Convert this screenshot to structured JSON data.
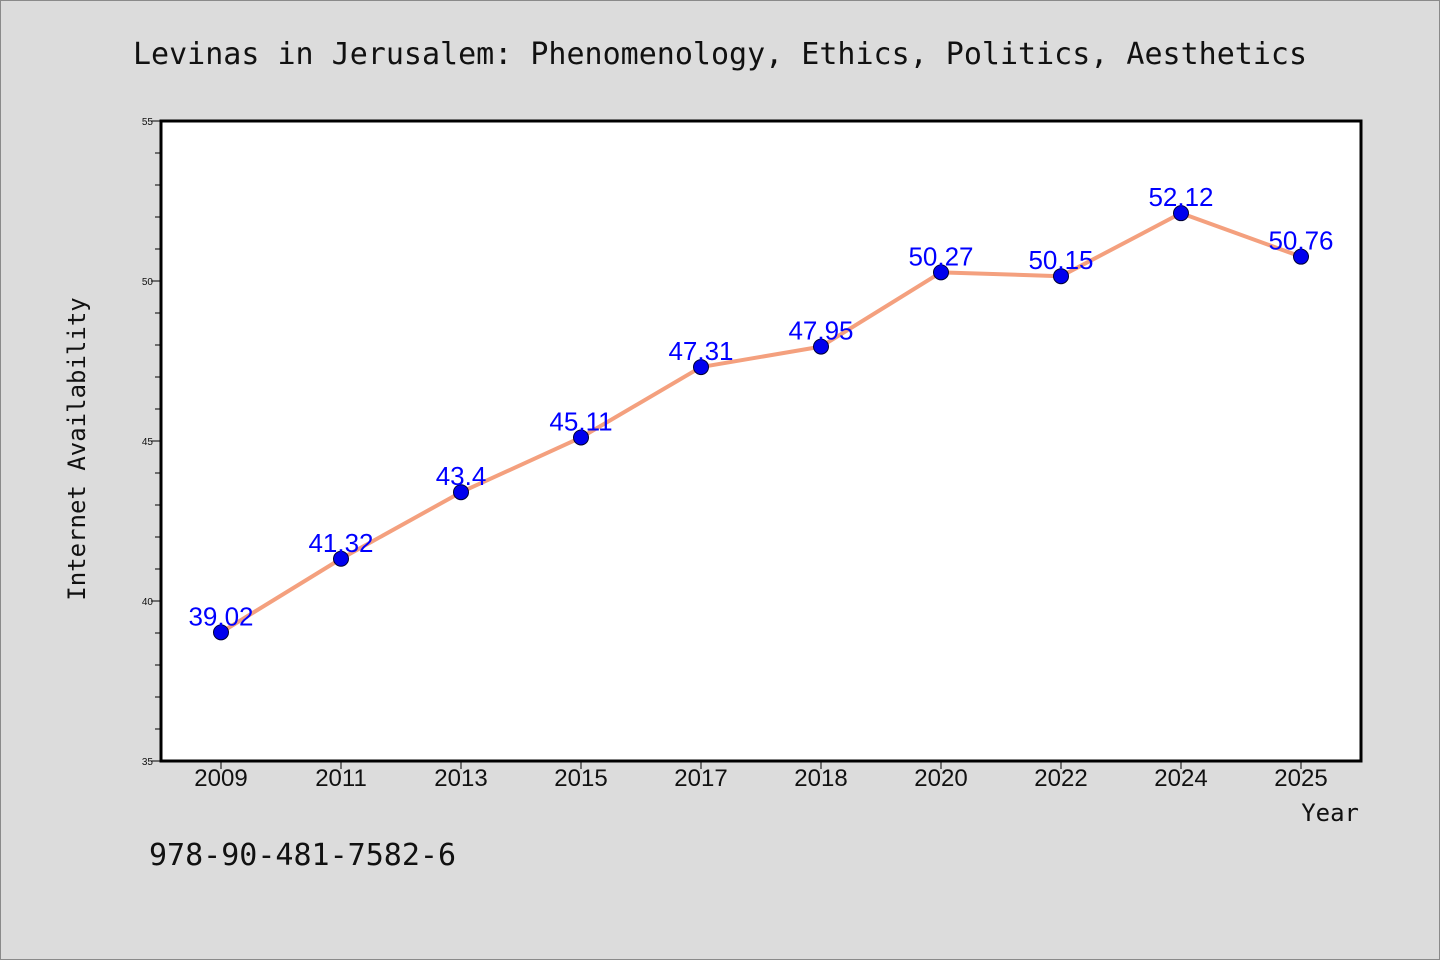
{
  "chart_data": {
    "type": "line",
    "title": "Levinas in Jerusalem: Phenomenology, Ethics, Politics, Aesthetics",
    "xlabel": "Year",
    "ylabel": "Internet Availability",
    "categories": [
      "2009",
      "2011",
      "2013",
      "2015",
      "2017",
      "2018",
      "2020",
      "2022",
      "2024",
      "2025"
    ],
    "series": [
      {
        "values": [
          39.02,
          41.32,
          43.4,
          45.11,
          47.31,
          47.95,
          50.27,
          50.15,
          52.12,
          50.76
        ],
        "labels": [
          "39.02",
          "41.32",
          "43.4",
          "45.11",
          "47.31",
          "47.95",
          "50.27",
          "50.15",
          "52.12",
          "50.76"
        ]
      }
    ],
    "ylim": [
      35,
      55
    ],
    "yticks": [
      "35",
      "40",
      "45",
      "50",
      "55"
    ],
    "grid": false,
    "legend": "none",
    "colors": {
      "line": "#f4a07e",
      "marker": "#0000ee",
      "label": "#0000ff",
      "background": "#dcdcdc",
      "plot_background": "#ffffff"
    }
  },
  "footer": {
    "isbn": "978-90-481-7582-6"
  }
}
